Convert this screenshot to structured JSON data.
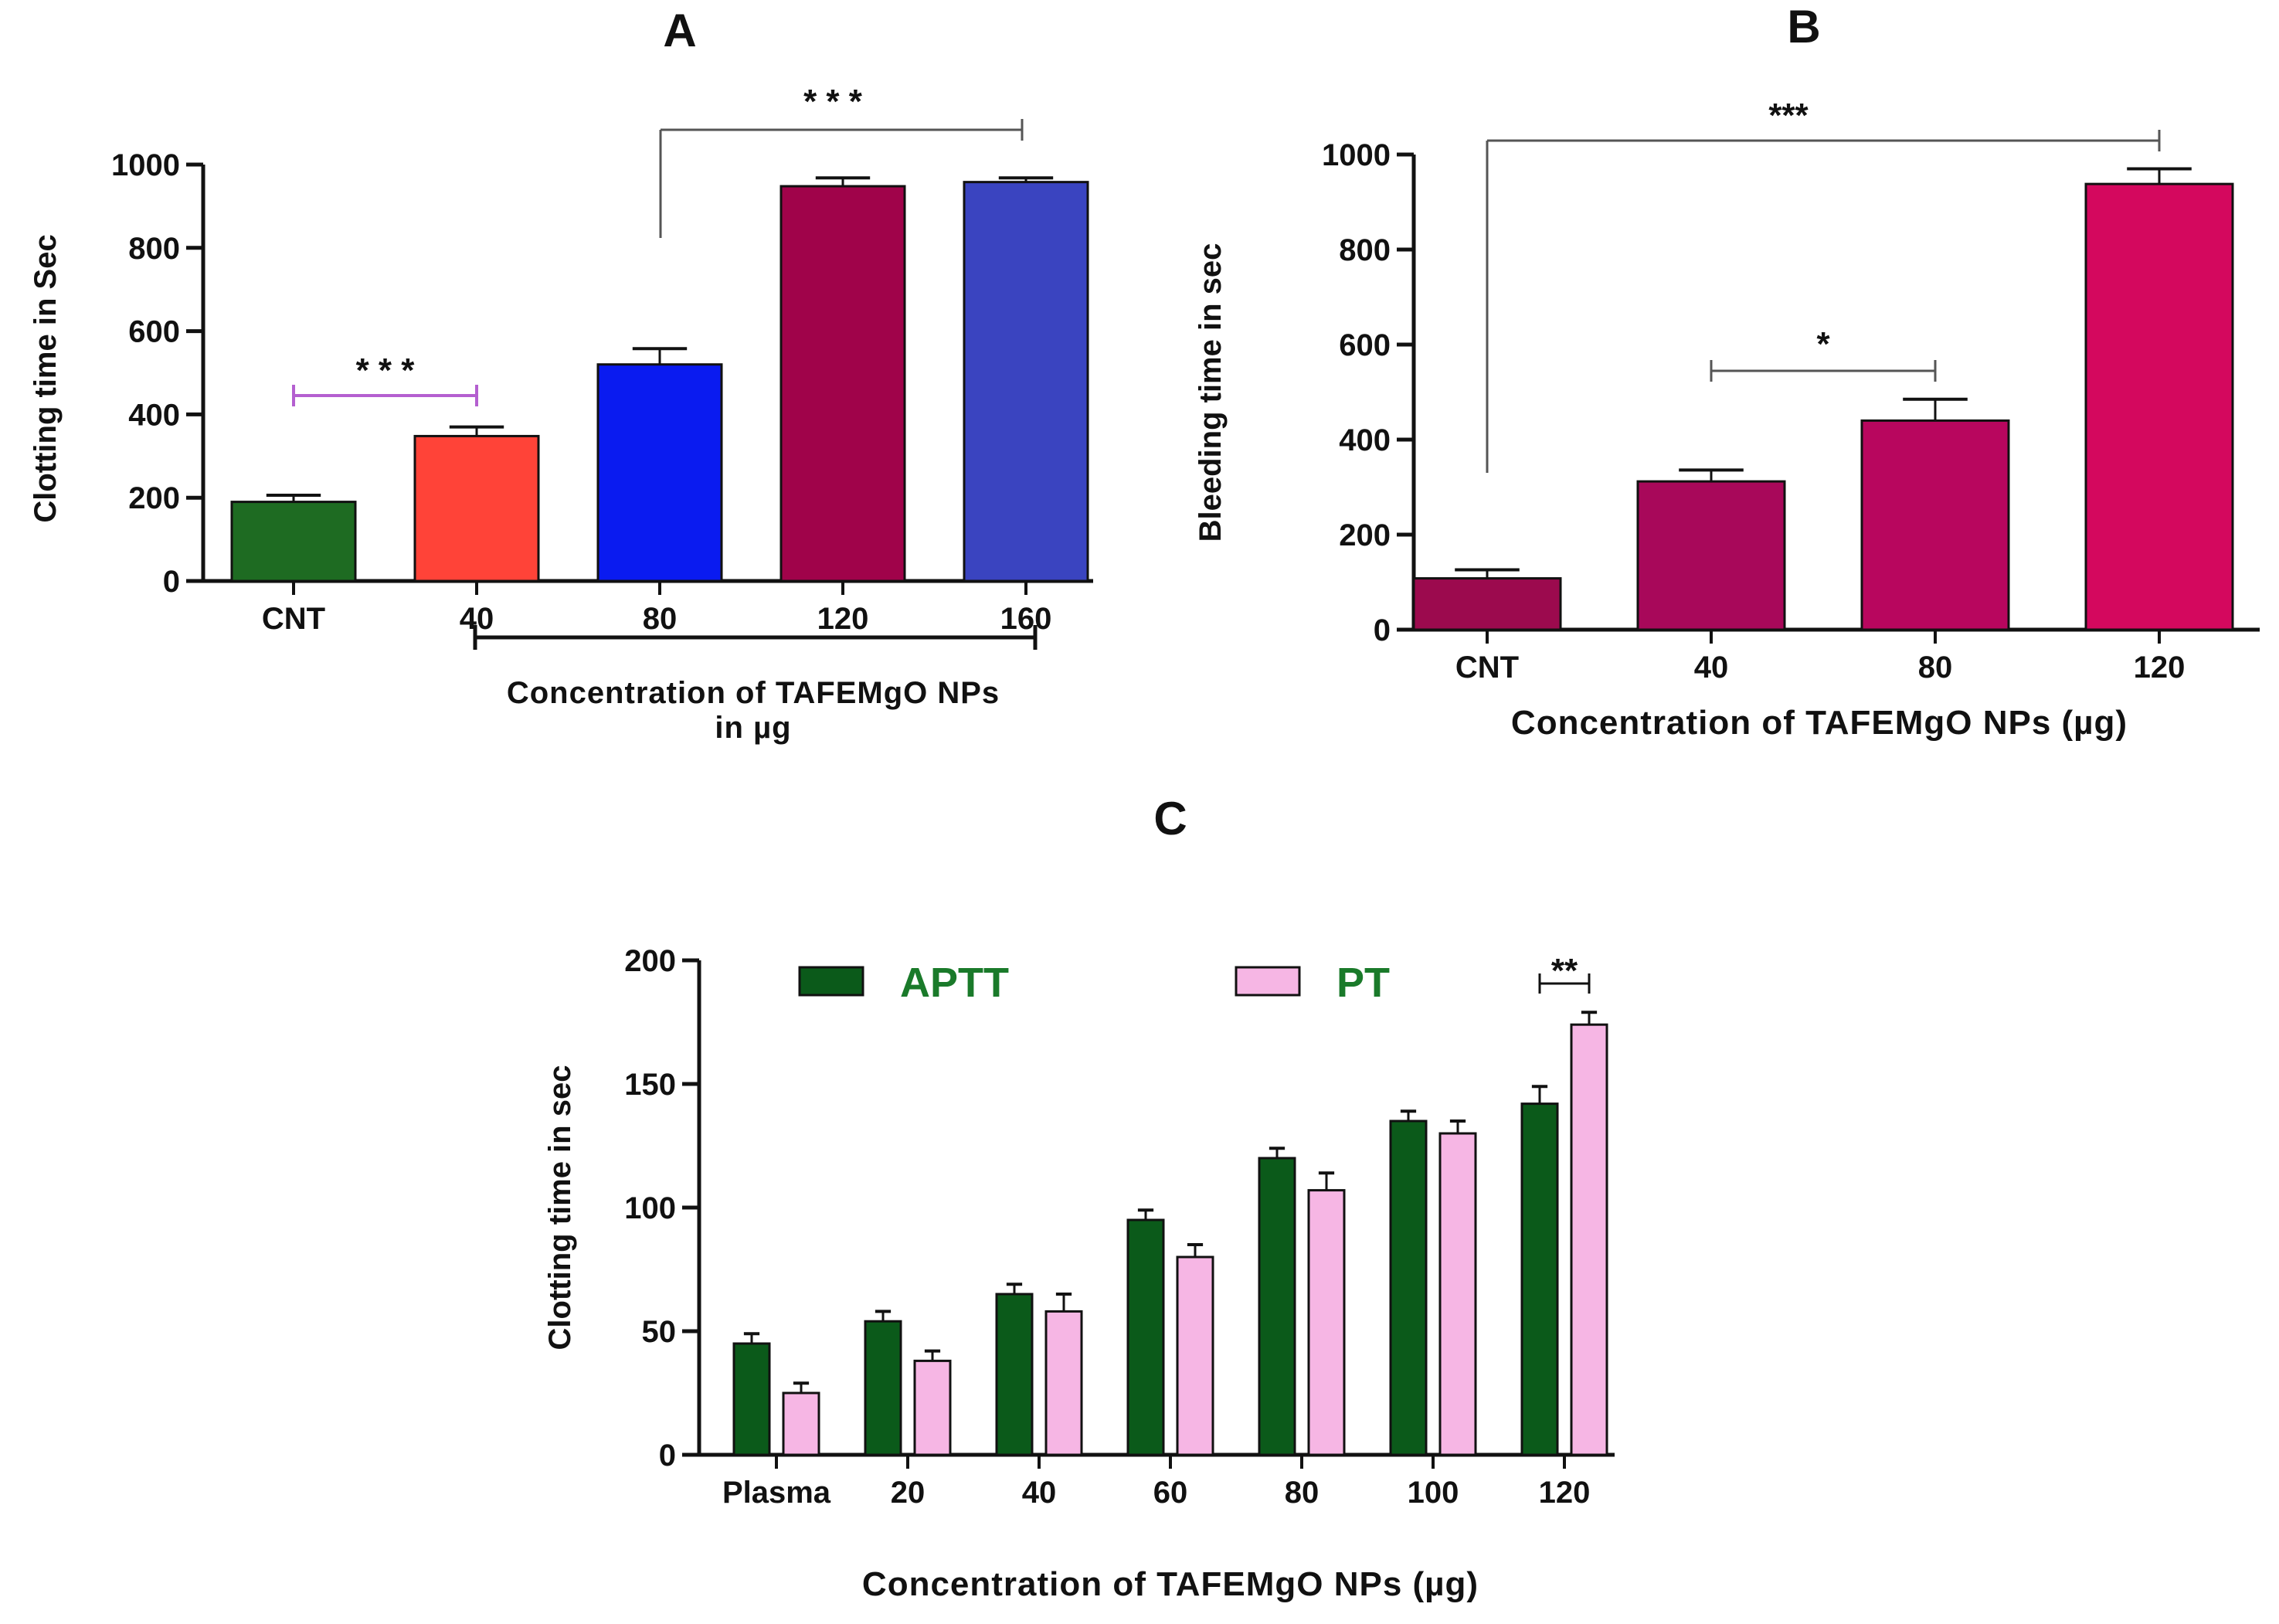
{
  "chart_data": [
    {
      "id": "A",
      "type": "bar",
      "panel_label": "A",
      "categories": [
        "CNT",
        "40",
        "80",
        "120",
        "160"
      ],
      "values": [
        190,
        348,
        520,
        948,
        958
      ],
      "errors": [
        16,
        22,
        38,
        20,
        10
      ],
      "colors": [
        "#1e6b22",
        "#ff4338",
        "#0a1bf0",
        "#a0034a",
        "#3a44c0"
      ],
      "ylabel": "Clotting time in Sec",
      "xlabel_lines": [
        "Concentration of TAFEMgO NPs",
        "in µg"
      ],
      "ylim": [
        0,
        1000
      ],
      "yticks": [
        0,
        200,
        400,
        600,
        800,
        1000
      ],
      "annotations": [
        {
          "from": 0,
          "to": 1,
          "text": "* * *",
          "color": "#b45fd0"
        },
        {
          "from": 2,
          "to": 4,
          "text": "* * *",
          "color": "#555555"
        }
      ]
    },
    {
      "id": "B",
      "type": "bar",
      "panel_label": "B",
      "categories": [
        "CNT",
        "40",
        "80",
        "120"
      ],
      "values": [
        108,
        312,
        440,
        938
      ],
      "errors": [
        18,
        24,
        45,
        32
      ],
      "colors": [
        "#9c0a4e",
        "#a8085a",
        "#b8065e",
        "#d4085e"
      ],
      "ylabel": "Bleeding time in sec",
      "xlabel": "Concentration  of TAFEMgO NPs (µg)",
      "ylim": [
        0,
        1000
      ],
      "yticks": [
        0,
        200,
        400,
        600,
        800,
        1000
      ],
      "annotations": [
        {
          "from": 0,
          "to": 3,
          "text": "***",
          "color": "#555555"
        },
        {
          "from": 1,
          "to": 2,
          "text": "*",
          "color": "#555555"
        }
      ]
    },
    {
      "id": "C",
      "type": "bar",
      "panel_label": "C",
      "categories": [
        "Plasma",
        "20",
        "40",
        "60",
        "80",
        "100",
        "120"
      ],
      "series": [
        {
          "name": "APTT",
          "color": "#0b5a1a",
          "values": [
            45,
            54,
            65,
            95,
            120,
            135,
            142
          ],
          "errors": [
            4,
            4,
            4,
            4,
            4,
            4,
            7
          ]
        },
        {
          "name": "PT",
          "color": "#f6b6e4",
          "values": [
            25,
            38,
            58,
            80,
            107,
            130,
            174
          ],
          "errors": [
            4,
            4,
            7,
            5,
            7,
            5,
            5
          ]
        }
      ],
      "legend_color": "#1a7a2a",
      "ylabel": "Clotting time in sec",
      "xlabel": "Concentration  of TAFEMgO NPs (µg)",
      "ylim": [
        0,
        200
      ],
      "yticks": [
        0,
        50,
        100,
        150,
        200
      ],
      "annotations": [
        {
          "group": 6,
          "text": "**",
          "color": "#111111"
        }
      ]
    }
  ]
}
